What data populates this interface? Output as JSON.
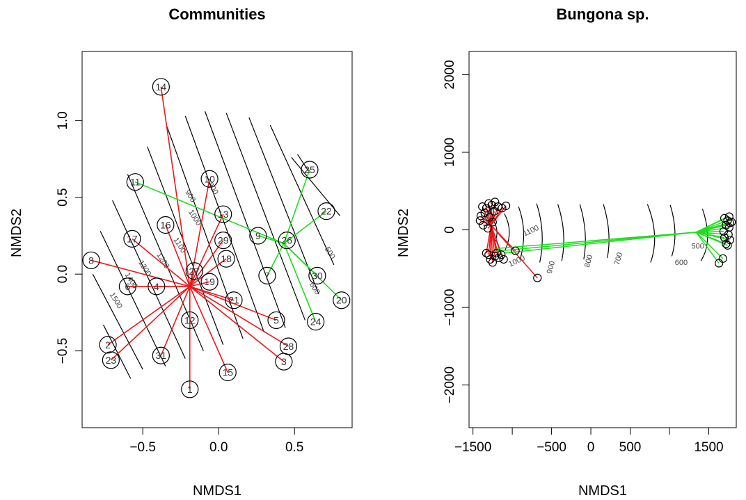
{
  "colors": {
    "red": "#e8191c",
    "green": "#1fdc1f",
    "contour": "#000000",
    "frame": "#000000"
  },
  "chart_data": [
    {
      "type": "scatter",
      "title": "Communities",
      "xlabel": "NMDS1",
      "ylabel": "NMDS2",
      "xlim": [
        -0.9,
        0.88
      ],
      "ylim": [
        -1.0,
        1.45
      ],
      "x_ticks": [
        -0.5,
        0.0,
        0.5
      ],
      "x_tick_labels": [
        "−0.5",
        "0.0",
        "0.5"
      ],
      "y_ticks": [
        -0.5,
        0.0,
        0.5,
        1.0
      ],
      "y_tick_labels": [
        "−0.5",
        "0.0",
        "0.5",
        "1.0"
      ],
      "points": [
        {
          "label": "14",
          "x": -0.38,
          "y": 1.22
        },
        {
          "label": "10",
          "x": -0.06,
          "y": 0.62
        },
        {
          "label": "11",
          "x": -0.55,
          "y": 0.6
        },
        {
          "label": "25",
          "x": 0.6,
          "y": 0.68
        },
        {
          "label": "22",
          "x": 0.71,
          "y": 0.41
        },
        {
          "label": "13",
          "x": 0.03,
          "y": 0.39
        },
        {
          "label": "16",
          "x": -0.35,
          "y": 0.32
        },
        {
          "label": "9",
          "x": 0.26,
          "y": 0.25
        },
        {
          "label": "29",
          "x": 0.03,
          "y": 0.22
        },
        {
          "label": "26",
          "x": 0.45,
          "y": 0.22
        },
        {
          "label": "17",
          "x": -0.57,
          "y": 0.23
        },
        {
          "label": "18",
          "x": 0.05,
          "y": 0.1
        },
        {
          "label": "8",
          "x": -0.84,
          "y": 0.09
        },
        {
          "label": "27",
          "x": -0.16,
          "y": 0.02
        },
        {
          "label": "7",
          "x": 0.32,
          "y": -0.01
        },
        {
          "label": "30",
          "x": 0.65,
          "y": -0.01
        },
        {
          "label": "19",
          "x": -0.06,
          "y": -0.05
        },
        {
          "label": "6",
          "x": -0.6,
          "y": -0.08
        },
        {
          "label": "4",
          "x": -0.41,
          "y": -0.08
        },
        {
          "label": "21",
          "x": 0.1,
          "y": -0.17
        },
        {
          "label": "20",
          "x": 0.81,
          "y": -0.17
        },
        {
          "label": "5",
          "x": 0.38,
          "y": -0.3
        },
        {
          "label": "12",
          "x": -0.19,
          "y": -0.3
        },
        {
          "label": "24",
          "x": 0.64,
          "y": -0.31
        },
        {
          "label": "2",
          "x": -0.73,
          "y": -0.46
        },
        {
          "label": "28",
          "x": 0.46,
          "y": -0.47
        },
        {
          "label": "31",
          "x": -0.38,
          "y": -0.53
        },
        {
          "label": "23",
          "x": -0.71,
          "y": -0.56
        },
        {
          "label": "3",
          "x": 0.43,
          "y": -0.57
        },
        {
          "label": "15",
          "x": 0.06,
          "y": -0.64
        },
        {
          "label": "1",
          "x": -0.19,
          "y": -0.75
        }
      ],
      "centroids": [
        {
          "name": "red",
          "x": -0.19,
          "y": -0.08
        },
        {
          "name": "green",
          "x": 0.43,
          "y": 0.2
        }
      ],
      "groups": {
        "red": [
          "14",
          "10",
          "13",
          "16",
          "29",
          "17",
          "18",
          "8",
          "27",
          "19",
          "6",
          "4",
          "21",
          "5",
          "12",
          "2",
          "28",
          "31",
          "23",
          "3",
          "15",
          "1"
        ],
        "green": [
          "11",
          "25",
          "22",
          "9",
          "26",
          "7",
          "30",
          "20",
          "24"
        ]
      },
      "contour_labels": [
        "1500",
        "1400",
        "1300",
        "1200",
        "1100",
        "1000",
        "900",
        "800",
        "700",
        "600",
        "500"
      ]
    },
    {
      "type": "scatter",
      "title": "Bungona sp.",
      "xlabel": "NMDS1",
      "ylabel": "NMDS2",
      "xlim": [
        -1550,
        1850
      ],
      "ylim": [
        -2550,
        2300
      ],
      "x_ticks": [
        -1500,
        -1000,
        -500,
        0,
        500,
        1000,
        1500
      ],
      "x_tick_labels": [
        "−1500",
        "",
        "−500",
        "0",
        "500",
        "",
        "1500"
      ],
      "y_ticks": [
        -2000,
        -1000,
        0,
        1000,
        2000
      ],
      "y_tick_labels": [
        "−2000",
        "−1000",
        "0",
        "1000",
        "2000"
      ],
      "centroids": [
        {
          "name": "red",
          "x": -1270,
          "y": 60
        },
        {
          "name": "green",
          "x": 1340,
          "y": -30
        }
      ],
      "red_points": [
        [
          -1380,
          300
        ],
        [
          -1350,
          220
        ],
        [
          -1400,
          180
        ],
        [
          -1410,
          120
        ],
        [
          -1370,
          60
        ],
        [
          -1330,
          280
        ],
        [
          -1300,
          340
        ],
        [
          -1260,
          320
        ],
        [
          -1220,
          360
        ],
        [
          -1180,
          300
        ],
        [
          -1130,
          280
        ],
        [
          -1080,
          310
        ],
        [
          -1230,
          240
        ],
        [
          -1290,
          160
        ],
        [
          -1250,
          100
        ],
        [
          -1310,
          20
        ],
        [
          -1300,
          -320
        ],
        [
          -1280,
          -380
        ],
        [
          -1250,
          -420
        ],
        [
          -1220,
          -340
        ],
        [
          -1200,
          -300
        ],
        [
          -1170,
          -360
        ],
        [
          -1140,
          -320
        ],
        [
          -1110,
          -380
        ],
        [
          -1330,
          -300
        ],
        [
          -960,
          -270
        ],
        [
          -680,
          -620
        ]
      ],
      "green_points": [
        [
          1700,
          150
        ],
        [
          1740,
          120
        ],
        [
          1770,
          90
        ],
        [
          1720,
          60
        ],
        [
          1760,
          30
        ],
        [
          1690,
          -20
        ],
        [
          1750,
          -60
        ],
        [
          1700,
          -100
        ],
        [
          1770,
          -130
        ],
        [
          1720,
          -180
        ],
        [
          1740,
          -200
        ],
        [
          1680,
          -370
        ],
        [
          1630,
          -430
        ],
        [
          1760,
          170
        ],
        [
          1790,
          100
        ]
      ],
      "isolines": [
        {
          "value": "1100",
          "label_x": -750,
          "label_y": -40
        },
        {
          "value": "1000",
          "label_x": -930,
          "label_y": -430
        },
        {
          "value": "900",
          "label_x": -480,
          "label_y": -490
        },
        {
          "value": "800",
          "label_x": 0,
          "label_y": -410
        },
        {
          "value": "700",
          "label_x": 380,
          "label_y": -380
        },
        {
          "value": "600",
          "label_x": 1150,
          "label_y": -450
        },
        {
          "value": "500",
          "label_x": 1360,
          "label_y": -240
        }
      ]
    }
  ]
}
